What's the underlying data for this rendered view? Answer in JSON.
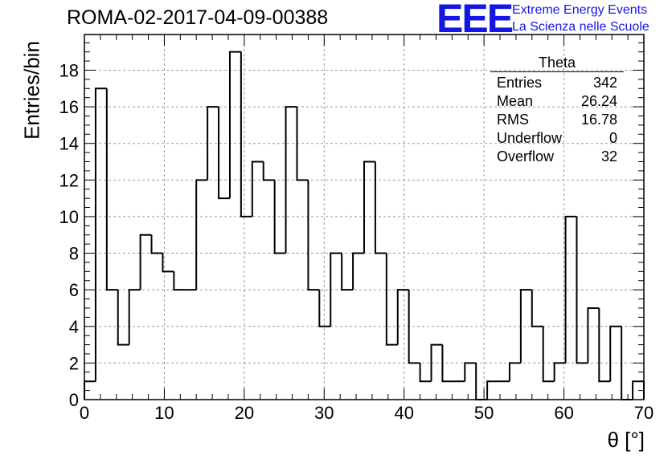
{
  "title": "ROMA-02-2017-04-09-00388",
  "logo": {
    "mark": "EEE",
    "line1": "Extreme Energy Events",
    "line2": "La Scienza nelle Scuole",
    "color": "#1515e6"
  },
  "stats": {
    "title": "Theta",
    "rows": [
      {
        "label": "Entries",
        "value": "342"
      },
      {
        "label": "Mean",
        "value": "26.24"
      },
      {
        "label": "RMS",
        "value": "16.78"
      },
      {
        "label": "Underflow",
        "value": "0"
      },
      {
        "label": "Overflow",
        "value": "32"
      }
    ]
  },
  "chart_data": {
    "type": "bar",
    "histogram": true,
    "title": "ROMA-02-2017-04-09-00388",
    "xlabel": "θ [°]",
    "ylabel": "Entries/bin",
    "xlim": [
      0,
      70
    ],
    "ylim": [
      0,
      19.95
    ],
    "bin_width": 1.4,
    "bin_edges_start": 0,
    "xticks": [
      0,
      10,
      20,
      30,
      40,
      50,
      60,
      70
    ],
    "yticks": [
      0,
      2,
      4,
      6,
      8,
      10,
      12,
      14,
      16,
      18
    ],
    "grid": true,
    "values": [
      1,
      17,
      6,
      3,
      6,
      9,
      8,
      7,
      6,
      6,
      12,
      16,
      11,
      19,
      10,
      13,
      12,
      8,
      16,
      12,
      6,
      4,
      8,
      6,
      8,
      13,
      8,
      3,
      6,
      2,
      1,
      3,
      1,
      1,
      2,
      0,
      1,
      1,
      2,
      6,
      4,
      1,
      2,
      10,
      2,
      5,
      1,
      4,
      0,
      1
    ],
    "line_color": "#000000"
  }
}
